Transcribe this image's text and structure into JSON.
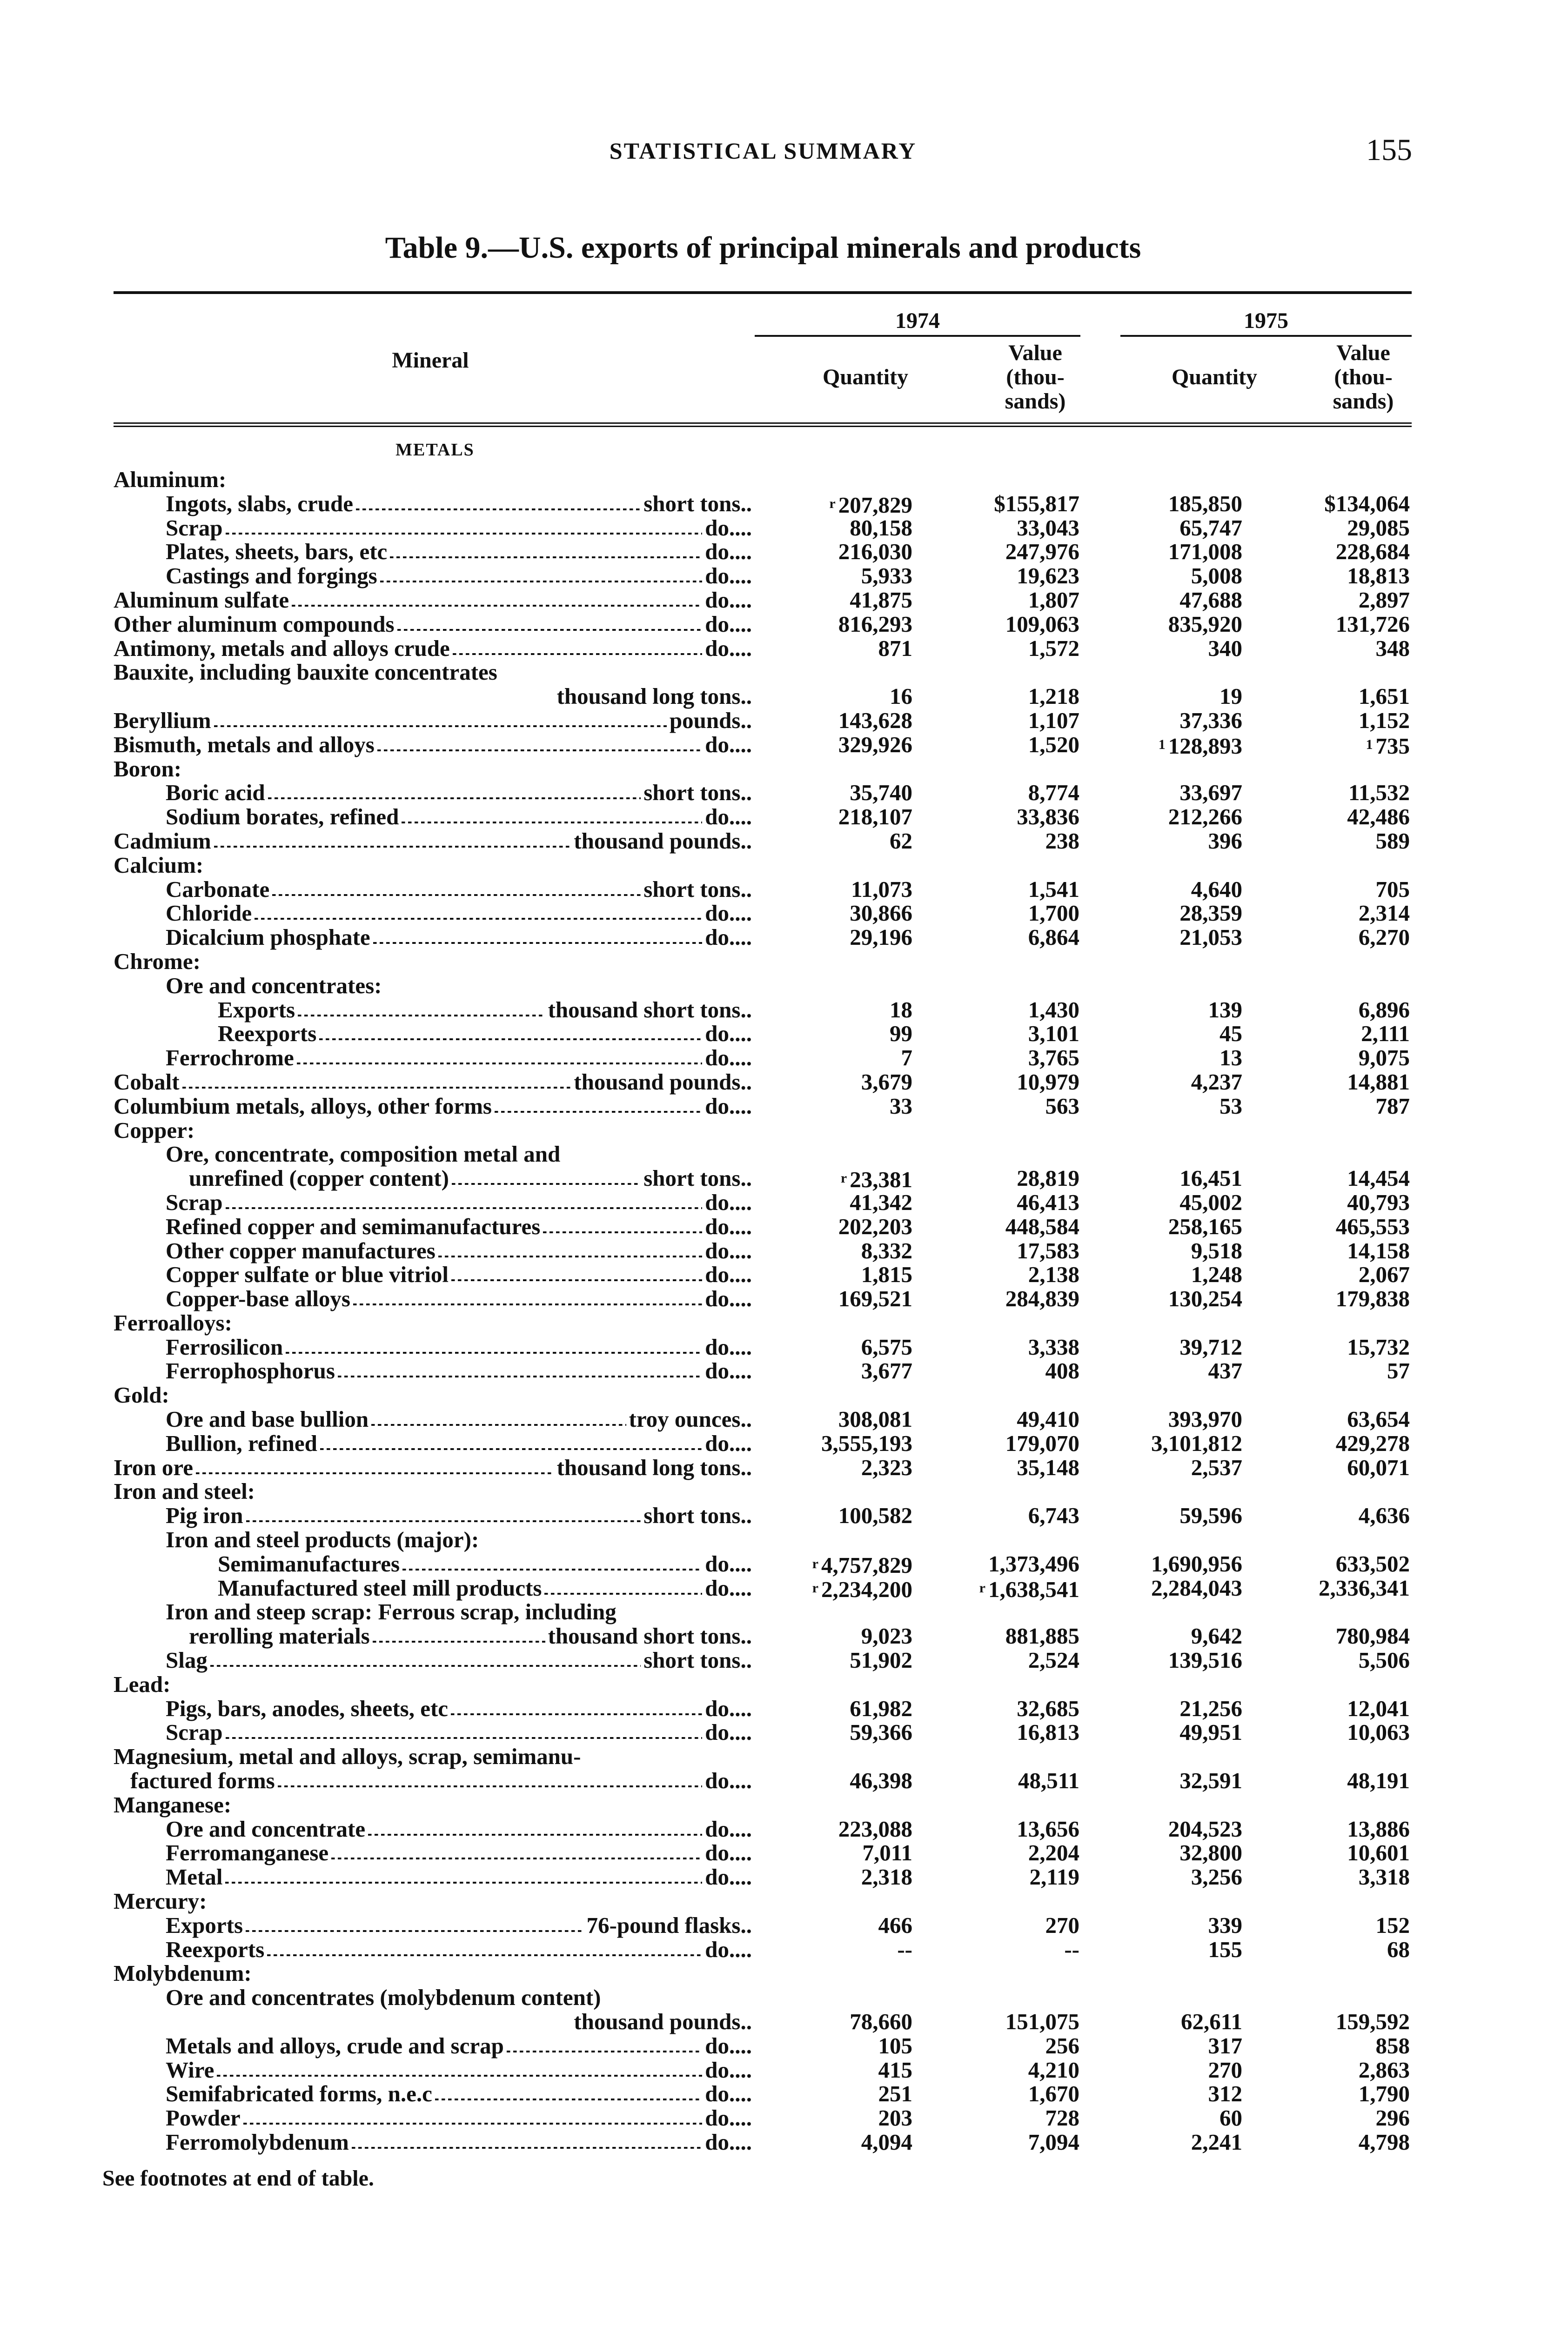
{
  "page": {
    "running_head": "STATISTICAL SUMMARY",
    "page_number": "155"
  },
  "table": {
    "title": "Table 9.—U.S. exports of principal minerals and products",
    "headers": {
      "mineral": "Mineral",
      "year1": "1974",
      "year2": "1975",
      "quantity": "Quantity",
      "value_lines": [
        "Value",
        "(thou-",
        "sands)"
      ]
    },
    "section": "METALS",
    "rows": [
      {
        "label": "Aluminum:",
        "level": 0
      },
      {
        "label": "Ingots, slabs, crude",
        "level": 1,
        "unit": "short tons",
        "values": [
          "r 207,829",
          "$155,817",
          "185,850",
          "$134,064"
        ]
      },
      {
        "label": "Scrap",
        "level": 1,
        "unit": "do",
        "values": [
          "80,158",
          "33,043",
          "65,747",
          "29,085"
        ]
      },
      {
        "label": "Plates, sheets, bars, etc",
        "level": 1,
        "unit": "do",
        "values": [
          "216,030",
          "247,976",
          "171,008",
          "228,684"
        ]
      },
      {
        "label": "Castings and forgings",
        "level": 1,
        "unit": "do",
        "values": [
          "5,933",
          "19,623",
          "5,008",
          "18,813"
        ]
      },
      {
        "label": "Aluminum sulfate",
        "level": 0,
        "unit": "do",
        "values": [
          "41,875",
          "1,807",
          "47,688",
          "2,897"
        ]
      },
      {
        "label": "Other aluminum compounds",
        "level": 0,
        "unit": "do",
        "values": [
          "816,293",
          "109,063",
          "835,920",
          "131,726"
        ]
      },
      {
        "label": "Antimony, metals and alloys crude",
        "level": 0,
        "unit": "do",
        "values": [
          "871",
          "1,572",
          "340",
          "348"
        ]
      },
      {
        "label": "Bauxite, including bauxite concentrates",
        "level": 0
      },
      {
        "label": "",
        "level": 0,
        "unit": "thousand long tons",
        "values": [
          "16",
          "1,218",
          "19",
          "1,651"
        ]
      },
      {
        "label": "Beryllium",
        "level": 0,
        "unit": "pounds",
        "values": [
          "143,628",
          "1,107",
          "37,336",
          "1,152"
        ]
      },
      {
        "label": "Bismuth, metals and alloys",
        "level": 0,
        "unit": "do",
        "values": [
          "329,926",
          "1,520",
          "1 128,893",
          "1 735"
        ]
      },
      {
        "label": "Boron:",
        "level": 0
      },
      {
        "label": "Boric acid",
        "level": 1,
        "unit": "short tons",
        "values": [
          "35,740",
          "8,774",
          "33,697",
          "11,532"
        ]
      },
      {
        "label": "Sodium borates, refined",
        "level": 1,
        "unit": "do",
        "values": [
          "218,107",
          "33,836",
          "212,266",
          "42,486"
        ]
      },
      {
        "label": "Cadmium",
        "level": 0,
        "unit": "thousand pounds",
        "values": [
          "62",
          "238",
          "396",
          "589"
        ]
      },
      {
        "label": "Calcium:",
        "level": 0
      },
      {
        "label": "Carbonate",
        "level": 1,
        "unit": "short tons",
        "values": [
          "11,073",
          "1,541",
          "4,640",
          "705"
        ]
      },
      {
        "label": "Chloride",
        "level": 1,
        "unit": "do",
        "values": [
          "30,866",
          "1,700",
          "28,359",
          "2,314"
        ]
      },
      {
        "label": "Dicalcium phosphate",
        "level": 1,
        "unit": "do",
        "values": [
          "29,196",
          "6,864",
          "21,053",
          "6,270"
        ]
      },
      {
        "label": "Chrome:",
        "level": 0
      },
      {
        "label": "Ore and concentrates:",
        "level": 1
      },
      {
        "label": "Exports",
        "level": 2,
        "unit": "thousand short tons",
        "values": [
          "18",
          "1,430",
          "139",
          "6,896"
        ]
      },
      {
        "label": "Reexports",
        "level": 2,
        "unit": "do",
        "values": [
          "99",
          "3,101",
          "45",
          "2,111"
        ]
      },
      {
        "label": "Ferrochrome",
        "level": 1,
        "unit": "do",
        "values": [
          "7",
          "3,765",
          "13",
          "9,075"
        ]
      },
      {
        "label": "Cobalt",
        "level": 0,
        "unit": "thousand pounds",
        "values": [
          "3,679",
          "10,979",
          "4,237",
          "14,881"
        ]
      },
      {
        "label": "Columbium metals, alloys, other forms",
        "level": 0,
        "unit": "do",
        "values": [
          "33",
          "563",
          "53",
          "787"
        ]
      },
      {
        "label": "Copper:",
        "level": 0
      },
      {
        "label": "Ore, concentrate, composition metal and",
        "level": 1
      },
      {
        "label": "unrefined (copper content)",
        "level": 1,
        "cont": true,
        "unit": "short tons",
        "values": [
          "r 23,381",
          "28,819",
          "16,451",
          "14,454"
        ]
      },
      {
        "label": "Scrap",
        "level": 1,
        "unit": "do",
        "values": [
          "41,342",
          "46,413",
          "45,002",
          "40,793"
        ]
      },
      {
        "label": "Refined copper and semimanufactures",
        "level": 1,
        "unit": "do",
        "values": [
          "202,203",
          "448,584",
          "258,165",
          "465,553"
        ]
      },
      {
        "label": "Other copper manufactures",
        "level": 1,
        "unit": "do",
        "values": [
          "8,332",
          "17,583",
          "9,518",
          "14,158"
        ]
      },
      {
        "label": "Copper sulfate or blue vitriol",
        "level": 1,
        "unit": "do",
        "values": [
          "1,815",
          "2,138",
          "1,248",
          "2,067"
        ]
      },
      {
        "label": "Copper-base alloys",
        "level": 1,
        "unit": "do",
        "values": [
          "169,521",
          "284,839",
          "130,254",
          "179,838"
        ]
      },
      {
        "label": "Ferroalloys:",
        "level": 0
      },
      {
        "label": "Ferrosilicon",
        "level": 1,
        "unit": "do",
        "values": [
          "6,575",
          "3,338",
          "39,712",
          "15,732"
        ]
      },
      {
        "label": "Ferrophosphorus",
        "level": 1,
        "unit": "do",
        "values": [
          "3,677",
          "408",
          "437",
          "57"
        ]
      },
      {
        "label": "Gold:",
        "level": 0
      },
      {
        "label": "Ore and base bullion",
        "level": 1,
        "unit": "troy ounces",
        "values": [
          "308,081",
          "49,410",
          "393,970",
          "63,654"
        ]
      },
      {
        "label": "Bullion, refined",
        "level": 1,
        "unit": "do",
        "values": [
          "3,555,193",
          "179,070",
          "3,101,812",
          "429,278"
        ]
      },
      {
        "label": "Iron ore",
        "level": 0,
        "unit": "thousand long tons",
        "values": [
          "2,323",
          "35,148",
          "2,537",
          "60,071"
        ]
      },
      {
        "label": "Iron and steel:",
        "level": 0
      },
      {
        "label": "Pig iron",
        "level": 1,
        "unit": "short tons",
        "values": [
          "100,582",
          "6,743",
          "59,596",
          "4,636"
        ]
      },
      {
        "label": "Iron and steel products (major):",
        "level": 1
      },
      {
        "label": "Semimanufactures",
        "level": 2,
        "unit": "do",
        "values": [
          "r 4,757,829",
          "1,373,496",
          "1,690,956",
          "633,502"
        ]
      },
      {
        "label": "Manufactured steel mill products",
        "level": 2,
        "unit": "do",
        "values": [
          "r 2,234,200",
          "r 1,638,541",
          "2,284,043",
          "2,336,341"
        ]
      },
      {
        "label": "Iron and steep scrap: Ferrous scrap, including",
        "level": 1
      },
      {
        "label": "rerolling materials",
        "level": 1,
        "cont": true,
        "unit": "thousand short tons",
        "values": [
          "9,023",
          "881,885",
          "9,642",
          "780,984"
        ]
      },
      {
        "label": "Slag",
        "level": 1,
        "unit": "short tons",
        "values": [
          "51,902",
          "2,524",
          "139,516",
          "5,506"
        ]
      },
      {
        "label": "Lead:",
        "level": 0
      },
      {
        "label": "Pigs, bars, anodes, sheets, etc",
        "level": 1,
        "unit": "do",
        "values": [
          "61,982",
          "32,685",
          "21,256",
          "12,041"
        ]
      },
      {
        "label": "Scrap",
        "level": 1,
        "unit": "do",
        "values": [
          "59,366",
          "16,813",
          "49,951",
          "10,063"
        ]
      },
      {
        "label": "Magnesium, metal and alloys, scrap, semimanu-",
        "level": 0
      },
      {
        "label": "factured forms",
        "level": 0,
        "cont": true,
        "unit": "do",
        "values": [
          "46,398",
          "48,511",
          "32,591",
          "48,191"
        ]
      },
      {
        "label": "Manganese:",
        "level": 0
      },
      {
        "label": "Ore and concentrate",
        "level": 1,
        "unit": "do",
        "values": [
          "223,088",
          "13,656",
          "204,523",
          "13,886"
        ]
      },
      {
        "label": "Ferromanganese",
        "level": 1,
        "unit": "do",
        "values": [
          "7,011",
          "2,204",
          "32,800",
          "10,601"
        ]
      },
      {
        "label": "Metal",
        "level": 1,
        "unit": "do",
        "values": [
          "2,318",
          "2,119",
          "3,256",
          "3,318"
        ]
      },
      {
        "label": "Mercury:",
        "level": 0
      },
      {
        "label": "Exports",
        "level": 1,
        "unit": "76-pound flasks",
        "values": [
          "466",
          "270",
          "339",
          "152"
        ]
      },
      {
        "label": "Reexports",
        "level": 1,
        "unit": "do",
        "values": [
          "--",
          "--",
          "155",
          "68"
        ]
      },
      {
        "label": "Molybdenum:",
        "level": 0
      },
      {
        "label": "Ore and concentrates (molybdenum content)",
        "level": 1
      },
      {
        "label": "",
        "level": 0,
        "unit": "thousand pounds",
        "values": [
          "78,660",
          "151,075",
          "62,611",
          "159,592"
        ]
      },
      {
        "label": "Metals and alloys, crude and scrap",
        "level": 1,
        "unit": "do",
        "values": [
          "105",
          "256",
          "317",
          "858"
        ]
      },
      {
        "label": "Wire",
        "level": 1,
        "unit": "do",
        "values": [
          "415",
          "4,210",
          "270",
          "2,863"
        ]
      },
      {
        "label": "Semifabricated forms, n.e.c",
        "level": 1,
        "unit": "do",
        "values": [
          "251",
          "1,670",
          "312",
          "1,790"
        ]
      },
      {
        "label": "Powder",
        "level": 1,
        "unit": "do",
        "values": [
          "203",
          "728",
          "60",
          "296"
        ]
      },
      {
        "label": "Ferromolybdenum",
        "level": 1,
        "unit": "do",
        "values": [
          "4,094",
          "7,094",
          "2,241",
          "4,798"
        ]
      }
    ],
    "footnote": "See footnotes at end of table."
  }
}
